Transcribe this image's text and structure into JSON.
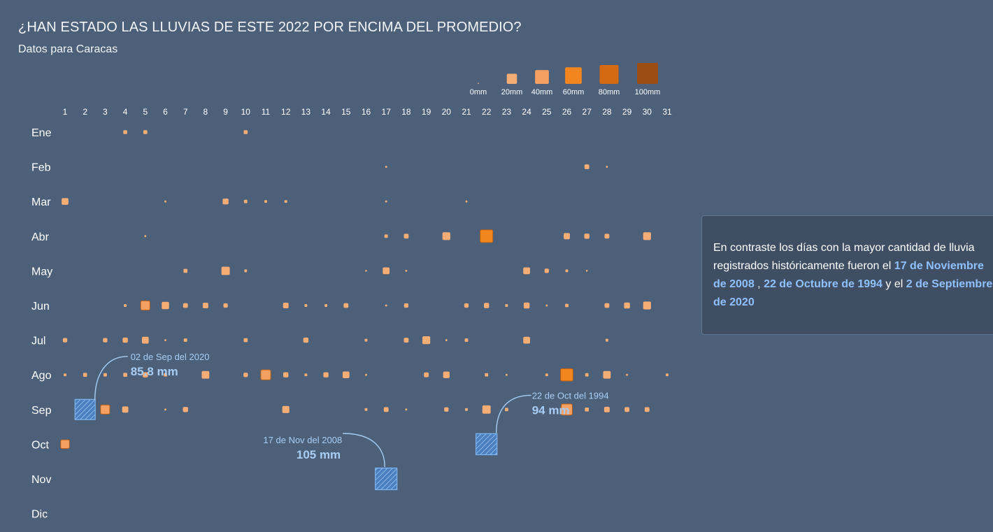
{
  "title": "¿HAN ESTADO LAS LLUVIAS DE ESTE 2022 POR ENCIMA DEL PROMEDIO?",
  "subtitle": "Datos para Caracas",
  "info": {
    "text_1": "En contraste los días con la mayor cantidad de lluvia registrados históricamente fueron el ",
    "hl_1": "17 de Noviembre de 2008",
    "text_2": " , ",
    "hl_2": "22 de Octubre de 1994",
    "text_3": " y el ",
    "hl_3": "2 de Septiembre de 2020"
  },
  "colors": {
    "background": "#4d6079",
    "highlight": "#8fc1ff",
    "record_fill": "#4a7fc0",
    "legend_scale": [
      "#f5ad76",
      "#f5a063",
      "#f1861e",
      "#d46a14",
      "#9a4c13"
    ]
  },
  "chart_data": {
    "type": "heatmap",
    "legend": {
      "labels": [
        "0mm",
        "20mm",
        "40mm",
        "60mm",
        "80mm",
        "100mm"
      ],
      "values": [
        0,
        20,
        40,
        60,
        80,
        100
      ]
    },
    "days": [
      "1",
      "2",
      "3",
      "4",
      "5",
      "6",
      "7",
      "8",
      "9",
      "10",
      "11",
      "12",
      "13",
      "14",
      "15",
      "16",
      "17",
      "18",
      "19",
      "20",
      "21",
      "22",
      "23",
      "24",
      "25",
      "26",
      "27",
      "28",
      "29",
      "30",
      "31"
    ],
    "months": [
      "Ene",
      "Feb",
      "Mar",
      "Abr",
      "May",
      "Jun",
      "Jul",
      "Ago",
      "Sep",
      "Oct",
      "Nov",
      "Dic"
    ],
    "rain_2022_mm": [
      [
        [
          4,
          4
        ],
        [
          5,
          4
        ],
        [
          10,
          4
        ]
      ],
      [
        [
          17,
          1
        ],
        [
          27,
          6
        ],
        [
          28,
          1
        ]
      ],
      [
        [
          1,
          12
        ],
        [
          6,
          1
        ],
        [
          9,
          9
        ],
        [
          10,
          3
        ],
        [
          11,
          2
        ],
        [
          12,
          2
        ],
        [
          17,
          1
        ],
        [
          21,
          1
        ]
      ],
      [
        [
          5,
          1
        ],
        [
          17,
          3
        ],
        [
          18,
          6
        ],
        [
          20,
          16
        ],
        [
          22,
          42
        ],
        [
          26,
          10
        ],
        [
          27,
          7
        ],
        [
          28,
          6
        ],
        [
          30,
          16
        ]
      ],
      [
        [
          7,
          4
        ],
        [
          9,
          18
        ],
        [
          10,
          2
        ],
        [
          16,
          0.5
        ],
        [
          17,
          12
        ],
        [
          18,
          1
        ],
        [
          24,
          12
        ],
        [
          25,
          5
        ],
        [
          26,
          2
        ],
        [
          27,
          0.5
        ]
      ],
      [
        [
          4,
          2
        ],
        [
          5,
          22
        ],
        [
          6,
          14
        ],
        [
          7,
          6
        ],
        [
          8,
          8
        ],
        [
          9,
          5
        ],
        [
          12,
          8
        ],
        [
          13,
          2
        ],
        [
          14,
          2
        ],
        [
          15,
          6
        ],
        [
          17,
          1
        ],
        [
          18,
          5
        ],
        [
          21,
          5
        ],
        [
          22,
          7
        ],
        [
          23,
          2
        ],
        [
          24,
          9
        ],
        [
          25,
          1
        ],
        [
          26,
          3
        ],
        [
          28,
          6
        ],
        [
          29,
          9
        ],
        [
          30,
          16
        ]
      ],
      [
        [
          1,
          5
        ],
        [
          3,
          5
        ],
        [
          4,
          7
        ],
        [
          5,
          12
        ],
        [
          6,
          1
        ],
        [
          7,
          3
        ],
        [
          10,
          4
        ],
        [
          13,
          7
        ],
        [
          16,
          2
        ],
        [
          18,
          6
        ],
        [
          19,
          16
        ],
        [
          20,
          1
        ],
        [
          21,
          3
        ],
        [
          24,
          12
        ],
        [
          28,
          2
        ]
      ],
      [
        [
          1,
          2
        ],
        [
          2,
          4
        ],
        [
          3,
          3
        ],
        [
          4,
          4
        ],
        [
          5,
          7
        ],
        [
          6,
          3
        ],
        [
          8,
          15
        ],
        [
          10,
          5
        ],
        [
          11,
          26
        ],
        [
          12,
          7
        ],
        [
          13,
          2
        ],
        [
          14,
          7
        ],
        [
          15,
          12
        ],
        [
          16,
          1
        ],
        [
          19,
          6
        ],
        [
          20,
          11
        ],
        [
          22,
          3
        ],
        [
          23,
          1
        ],
        [
          25,
          2
        ],
        [
          26,
          40
        ],
        [
          27,
          3
        ],
        [
          28,
          15
        ],
        [
          29,
          1
        ],
        [
          31,
          2
        ]
      ],
      [
        [
          3,
          22
        ],
        [
          4,
          10
        ],
        [
          6,
          1
        ],
        [
          7,
          7
        ],
        [
          12,
          13
        ],
        [
          16,
          2
        ],
        [
          17,
          6
        ],
        [
          18,
          1
        ],
        [
          20,
          5
        ],
        [
          21,
          2
        ],
        [
          22,
          18
        ],
        [
          23,
          3
        ],
        [
          26,
          32
        ],
        [
          27,
          4
        ],
        [
          28,
          8
        ],
        [
          29,
          6
        ],
        [
          30,
          6
        ]
      ],
      [
        [
          1,
          20
        ]
      ],
      [],
      []
    ],
    "records": [
      {
        "month": "Sep",
        "day": 2,
        "date_label": "02 de Sep del 2020",
        "value_label": "85.8 mm",
        "mm": 85.8
      },
      {
        "month": "Nov",
        "day": 17,
        "date_label": "17 de Nov del 2008",
        "value_label": "105 mm",
        "mm": 105
      },
      {
        "month": "Oct",
        "day": 22,
        "date_label": "22 de Oct del 1994",
        "value_label": "94 mm",
        "mm": 94
      }
    ]
  }
}
